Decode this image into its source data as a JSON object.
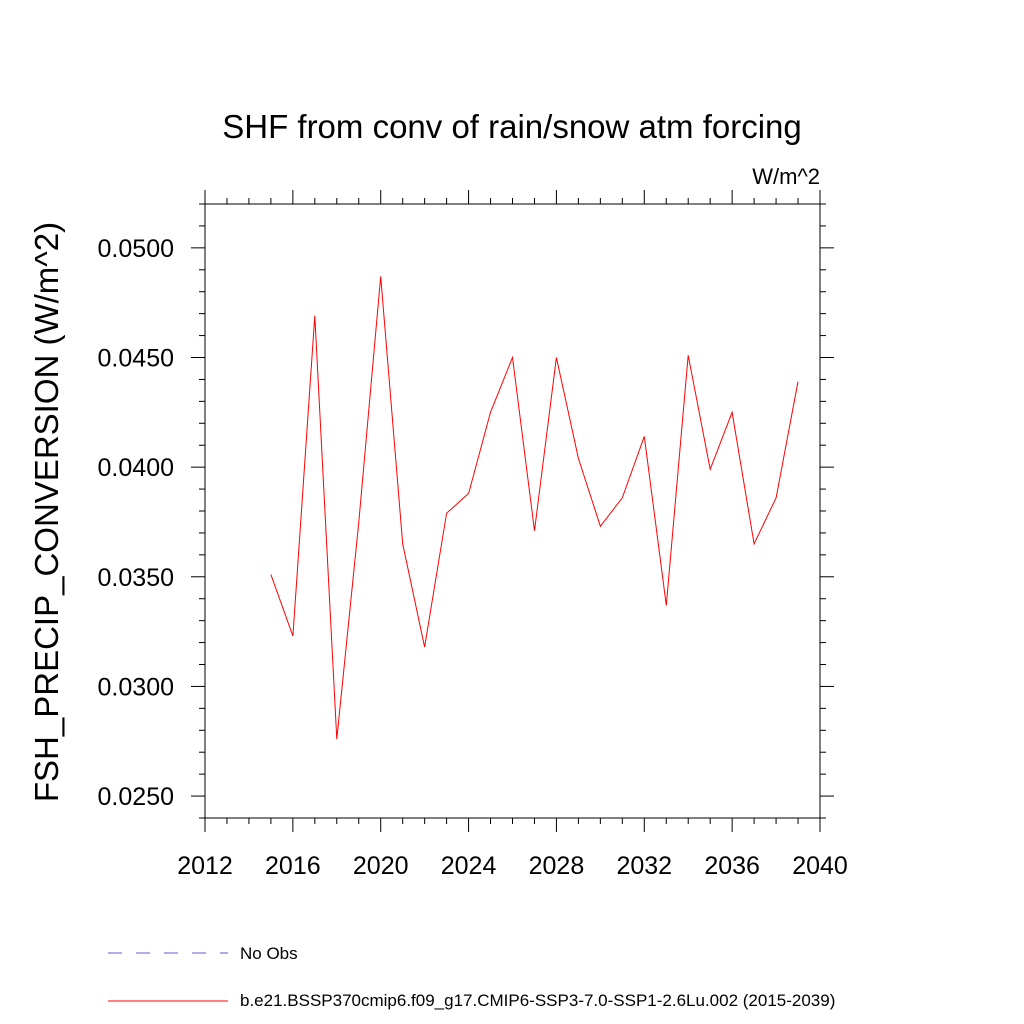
{
  "chart_data": {
    "type": "line",
    "title": "SHF from conv of rain/snow atm forcing",
    "units": "W/m^2",
    "ylabel": "FSH_PRECIP_CONVERSION  (W/m^2)",
    "xlabel": "",
    "xlim": [
      2012,
      2040
    ],
    "ylim": [
      0.024,
      0.052
    ],
    "x_ticks": [
      2012,
      2016,
      2020,
      2024,
      2028,
      2032,
      2036,
      2040
    ],
    "x_tick_labels": [
      "2012",
      "2016",
      "2020",
      "2024",
      "2028",
      "2032",
      "2036",
      "2040"
    ],
    "y_ticks": [
      0.025,
      0.03,
      0.035,
      0.04,
      0.045,
      0.05
    ],
    "y_tick_labels": [
      "0.0250",
      "0.0300",
      "0.0350",
      "0.0400",
      "0.0450",
      "0.0500"
    ],
    "grid": false,
    "legend_position": "bottom-left",
    "series": [
      {
        "name": "b.e21.BSSP370cmip6.f09_g17.CMIP6-SSP3-7.0-SSP1-2.6Lu.002 (2015-2039)",
        "color": "#ff0000",
        "style": "solid",
        "x": [
          2015,
          2016,
          2017,
          2018,
          2019,
          2020,
          2021,
          2022,
          2023,
          2024,
          2025,
          2026,
          2027,
          2028,
          2029,
          2030,
          2031,
          2032,
          2033,
          2034,
          2035,
          2036,
          2037,
          2038,
          2039
        ],
        "y": [
          0.0351,
          0.0323,
          0.0469,
          0.0276,
          0.0375,
          0.0487,
          0.0365,
          0.0318,
          0.0379,
          0.0388,
          0.0425,
          0.045,
          0.0371,
          0.045,
          0.0404,
          0.0373,
          0.0386,
          0.0414,
          0.0337,
          0.0451,
          0.0399,
          0.0425,
          0.0365,
          0.0386,
          0.0439
        ]
      }
    ],
    "legend": [
      {
        "label": "No Obs",
        "color": "#6a5acd",
        "style": "dashed"
      },
      {
        "label": "b.e21.BSSP370cmip6.f09_g17.CMIP6-SSP3-7.0-SSP1-2.6Lu.002 (2015-2039)",
        "color": "#ff0000",
        "style": "solid"
      }
    ]
  }
}
